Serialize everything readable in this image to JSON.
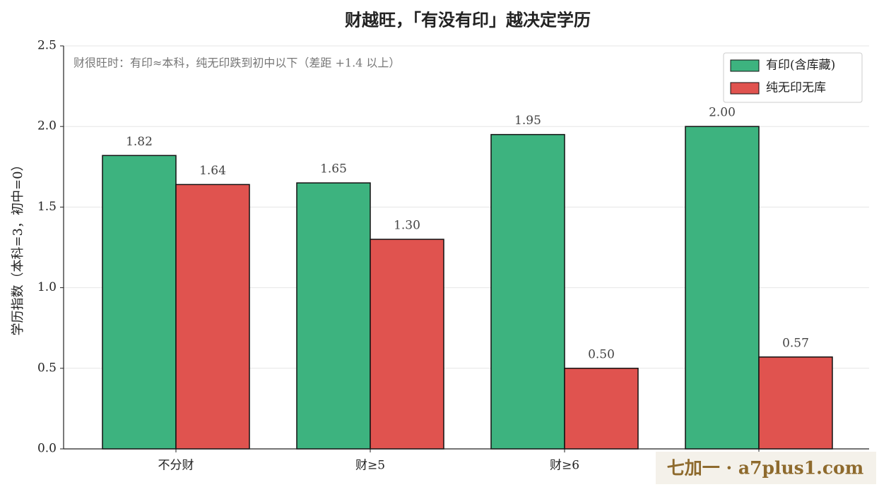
{
  "chart_data": {
    "type": "bar",
    "title": "财越旺，「有没有印」越决定学历",
    "annotation": "财很旺时：有印≈本科，纯无印跌到初中以下（差距 +1.4 以上）",
    "ylabel": "学历指数（本科=3，初中=0）",
    "watermark": "七加一 · a7plus1.com",
    "categories": [
      "不分财",
      "财≥5",
      "财≥6",
      ""
    ],
    "series": [
      {
        "name": "有印(含库藏)",
        "color": "#3db37f",
        "values": [
          1.82,
          1.65,
          1.95,
          2.0
        ],
        "value_labels": [
          "1.82",
          "1.65",
          "1.95",
          "2.00"
        ]
      },
      {
        "name": "纯无印无库",
        "color": "#e0534f",
        "values": [
          1.64,
          1.3,
          0.5,
          0.57
        ],
        "value_labels": [
          "1.64",
          "1.30",
          "0.50",
          "0.57"
        ]
      }
    ],
    "ylim": [
      0,
      2.5
    ],
    "yticks": [
      {
        "value": 0,
        "label": "0.0"
      },
      0.5,
      {
        "value": 1,
        "label": "1.0"
      },
      1.5,
      {
        "value": 2,
        "label": "2.0"
      },
      2.5
    ],
    "grid": true,
    "legend": "upper right"
  }
}
